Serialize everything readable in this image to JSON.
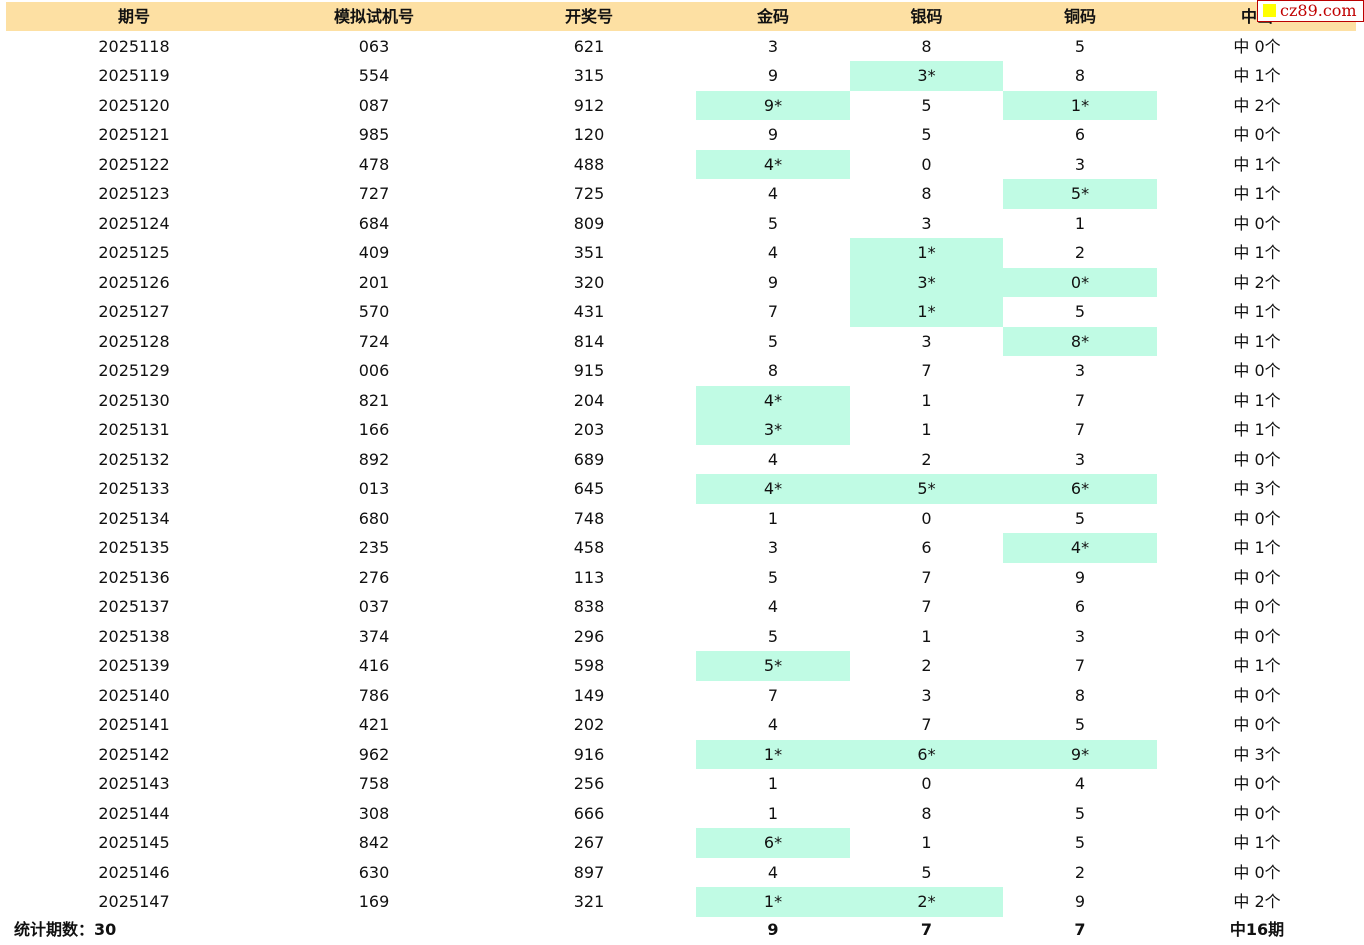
{
  "header": {
    "period": "期号",
    "sim": "模拟试机号",
    "draw": "开奖号",
    "gold": "金码",
    "silver": "银码",
    "bronze": "铜码",
    "hits": "中出"
  },
  "watermark": "cz89.com",
  "rows": [
    {
      "period": "2025118",
      "sim": "063",
      "draw": "621",
      "gold": "3",
      "silver": "8",
      "bronze": "5",
      "hits": "中 0个",
      "gold_hit": false,
      "silver_hit": false,
      "bronze_hit": false
    },
    {
      "period": "2025119",
      "sim": "554",
      "draw": "315",
      "gold": "9",
      "silver": "3*",
      "bronze": "8",
      "hits": "中 1个",
      "gold_hit": false,
      "silver_hit": true,
      "bronze_hit": false
    },
    {
      "period": "2025120",
      "sim": "087",
      "draw": "912",
      "gold": "9*",
      "silver": "5",
      "bronze": "1*",
      "hits": "中 2个",
      "gold_hit": true,
      "silver_hit": false,
      "bronze_hit": true
    },
    {
      "period": "2025121",
      "sim": "985",
      "draw": "120",
      "gold": "9",
      "silver": "5",
      "bronze": "6",
      "hits": "中 0个",
      "gold_hit": false,
      "silver_hit": false,
      "bronze_hit": false
    },
    {
      "period": "2025122",
      "sim": "478",
      "draw": "488",
      "gold": "4*",
      "silver": "0",
      "bronze": "3",
      "hits": "中 1个",
      "gold_hit": true,
      "silver_hit": false,
      "bronze_hit": false
    },
    {
      "period": "2025123",
      "sim": "727",
      "draw": "725",
      "gold": "4",
      "silver": "8",
      "bronze": "5*",
      "hits": "中 1个",
      "gold_hit": false,
      "silver_hit": false,
      "bronze_hit": true
    },
    {
      "period": "2025124",
      "sim": "684",
      "draw": "809",
      "gold": "5",
      "silver": "3",
      "bronze": "1",
      "hits": "中 0个",
      "gold_hit": false,
      "silver_hit": false,
      "bronze_hit": false
    },
    {
      "period": "2025125",
      "sim": "409",
      "draw": "351",
      "gold": "4",
      "silver": "1*",
      "bronze": "2",
      "hits": "中 1个",
      "gold_hit": false,
      "silver_hit": true,
      "bronze_hit": false
    },
    {
      "period": "2025126",
      "sim": "201",
      "draw": "320",
      "gold": "9",
      "silver": "3*",
      "bronze": "0*",
      "hits": "中 2个",
      "gold_hit": false,
      "silver_hit": true,
      "bronze_hit": true
    },
    {
      "period": "2025127",
      "sim": "570",
      "draw": "431",
      "gold": "7",
      "silver": "1*",
      "bronze": "5",
      "hits": "中 1个",
      "gold_hit": false,
      "silver_hit": true,
      "bronze_hit": false
    },
    {
      "period": "2025128",
      "sim": "724",
      "draw": "814",
      "gold": "5",
      "silver": "3",
      "bronze": "8*",
      "hits": "中 1个",
      "gold_hit": false,
      "silver_hit": false,
      "bronze_hit": true
    },
    {
      "period": "2025129",
      "sim": "006",
      "draw": "915",
      "gold": "8",
      "silver": "7",
      "bronze": "3",
      "hits": "中 0个",
      "gold_hit": false,
      "silver_hit": false,
      "bronze_hit": false
    },
    {
      "period": "2025130",
      "sim": "821",
      "draw": "204",
      "gold": "4*",
      "silver": "1",
      "bronze": "7",
      "hits": "中 1个",
      "gold_hit": true,
      "silver_hit": false,
      "bronze_hit": false
    },
    {
      "period": "2025131",
      "sim": "166",
      "draw": "203",
      "gold": "3*",
      "silver": "1",
      "bronze": "7",
      "hits": "中 1个",
      "gold_hit": true,
      "silver_hit": false,
      "bronze_hit": false
    },
    {
      "period": "2025132",
      "sim": "892",
      "draw": "689",
      "gold": "4",
      "silver": "2",
      "bronze": "3",
      "hits": "中 0个",
      "gold_hit": false,
      "silver_hit": false,
      "bronze_hit": false
    },
    {
      "period": "2025133",
      "sim": "013",
      "draw": "645",
      "gold": "4*",
      "silver": "5*",
      "bronze": "6*",
      "hits": "中 3个",
      "gold_hit": true,
      "silver_hit": true,
      "bronze_hit": true
    },
    {
      "period": "2025134",
      "sim": "680",
      "draw": "748",
      "gold": "1",
      "silver": "0",
      "bronze": "5",
      "hits": "中 0个",
      "gold_hit": false,
      "silver_hit": false,
      "bronze_hit": false
    },
    {
      "period": "2025135",
      "sim": "235",
      "draw": "458",
      "gold": "3",
      "silver": "6",
      "bronze": "4*",
      "hits": "中 1个",
      "gold_hit": false,
      "silver_hit": false,
      "bronze_hit": true
    },
    {
      "period": "2025136",
      "sim": "276",
      "draw": "113",
      "gold": "5",
      "silver": "7",
      "bronze": "9",
      "hits": "中 0个",
      "gold_hit": false,
      "silver_hit": false,
      "bronze_hit": false
    },
    {
      "period": "2025137",
      "sim": "037",
      "draw": "838",
      "gold": "4",
      "silver": "7",
      "bronze": "6",
      "hits": "中 0个",
      "gold_hit": false,
      "silver_hit": false,
      "bronze_hit": false
    },
    {
      "period": "2025138",
      "sim": "374",
      "draw": "296",
      "gold": "5",
      "silver": "1",
      "bronze": "3",
      "hits": "中 0个",
      "gold_hit": false,
      "silver_hit": false,
      "bronze_hit": false
    },
    {
      "period": "2025139",
      "sim": "416",
      "draw": "598",
      "gold": "5*",
      "silver": "2",
      "bronze": "7",
      "hits": "中 1个",
      "gold_hit": true,
      "silver_hit": false,
      "bronze_hit": false
    },
    {
      "period": "2025140",
      "sim": "786",
      "draw": "149",
      "gold": "7",
      "silver": "3",
      "bronze": "8",
      "hits": "中 0个",
      "gold_hit": false,
      "silver_hit": false,
      "bronze_hit": false
    },
    {
      "period": "2025141",
      "sim": "421",
      "draw": "202",
      "gold": "4",
      "silver": "7",
      "bronze": "5",
      "hits": "中 0个",
      "gold_hit": false,
      "silver_hit": false,
      "bronze_hit": false
    },
    {
      "period": "2025142",
      "sim": "962",
      "draw": "916",
      "gold": "1*",
      "silver": "6*",
      "bronze": "9*",
      "hits": "中 3个",
      "gold_hit": true,
      "silver_hit": true,
      "bronze_hit": true
    },
    {
      "period": "2025143",
      "sim": "758",
      "draw": "256",
      "gold": "1",
      "silver": "0",
      "bronze": "4",
      "hits": "中 0个",
      "gold_hit": false,
      "silver_hit": false,
      "bronze_hit": false
    },
    {
      "period": "2025144",
      "sim": "308",
      "draw": "666",
      "gold": "1",
      "silver": "8",
      "bronze": "5",
      "hits": "中 0个",
      "gold_hit": false,
      "silver_hit": false,
      "bronze_hit": false
    },
    {
      "period": "2025145",
      "sim": "842",
      "draw": "267",
      "gold": "6*",
      "silver": "1",
      "bronze": "5",
      "hits": "中 1个",
      "gold_hit": true,
      "silver_hit": false,
      "bronze_hit": false
    },
    {
      "period": "2025146",
      "sim": "630",
      "draw": "897",
      "gold": "4",
      "silver": "5",
      "bronze": "2",
      "hits": "中 0个",
      "gold_hit": false,
      "silver_hit": false,
      "bronze_hit": false
    },
    {
      "period": "2025147",
      "sim": "169",
      "draw": "321",
      "gold": "1*",
      "silver": "2*",
      "bronze": "9",
      "hits": "中 2个",
      "gold_hit": true,
      "silver_hit": true,
      "bronze_hit": false
    }
  ],
  "footer": {
    "label": "统计期数：30",
    "gold_total": "9",
    "silver_total": "7",
    "bronze_total": "7",
    "hits_total": "中16期"
  },
  "colors": {
    "header_bg": "#fde0a3",
    "hit_bg": "#c0fbe4"
  }
}
